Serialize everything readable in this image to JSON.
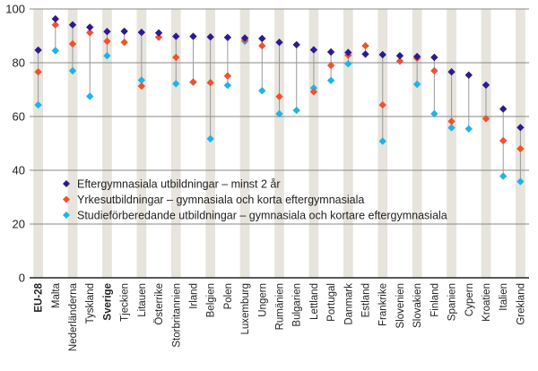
{
  "chart_data": {
    "type": "dot",
    "title": "",
    "xlabel": "",
    "ylabel": "",
    "ylim": [
      0,
      100
    ],
    "yticks": [
      0,
      20,
      40,
      60,
      80,
      100
    ],
    "legend_position": "inside-lower-left",
    "categories": [
      "EU-28",
      "Malta",
      "Nederländerna",
      "Tyskland",
      "Sverige",
      "Tjeckien",
      "Litauen",
      "Österrike",
      "Storbritannien",
      "Irland",
      "Belgien",
      "Polen",
      "Luxemburg",
      "Ungern",
      "Rumänien",
      "Bulgarien",
      "Lettland",
      "Portugal",
      "Danmark",
      "Estland",
      "Frankrike",
      "Slovenien",
      "Slovakien",
      "Finland",
      "Spanien",
      "Cypern",
      "Kroatien",
      "Italien",
      "Grekland"
    ],
    "bold_categories": [
      "EU-28",
      "Sverige"
    ],
    "series": [
      {
        "name": "Eftergymnasiala utbildningar – minst 2 år",
        "color": "#2e1a8e",
        "marker": "diamond",
        "values": [
          84.7,
          96.3,
          94.1,
          93.2,
          91.6,
          91.7,
          91.3,
          91.1,
          89.8,
          89.8,
          89.6,
          89.4,
          89.2,
          89.0,
          87.6,
          86.7,
          84.8,
          84.0,
          83.8,
          83.2,
          83.0,
          82.6,
          82.3,
          82.0,
          76.6,
          75.4,
          71.7,
          62.8,
          55.9
        ]
      },
      {
        "name": "Yrkesutbildningar – gymnasiala och korta eftergymnasiala",
        "color": "#f0522d",
        "marker": "diamond",
        "values": [
          76.6,
          94.1,
          87.0,
          91.2,
          88.0,
          87.6,
          71.3,
          89.5,
          82.0,
          72.8,
          72.6,
          75.1,
          88.5,
          86.3,
          67.4,
          null,
          69.2,
          79.0,
          82.8,
          86.3,
          64.3,
          80.6,
          81.7,
          77.0,
          58.2,
          null,
          59.2,
          51.0,
          48.0
        ]
      },
      {
        "name": "Studieförberedande utbildningar – gymnasiala och kortare eftergymnasiala",
        "color": "#1eb4e6",
        "marker": "diamond",
        "values": [
          64.3,
          84.5,
          77.0,
          67.5,
          82.6,
          null,
          73.5,
          null,
          72.2,
          72.8,
          51.7,
          71.6,
          88.0,
          69.6,
          61.0,
          62.3,
          70.6,
          73.4,
          79.6,
          null,
          50.8,
          null,
          72.0,
          61.0,
          55.8,
          55.4,
          null,
          37.8,
          35.8
        ]
      }
    ]
  }
}
